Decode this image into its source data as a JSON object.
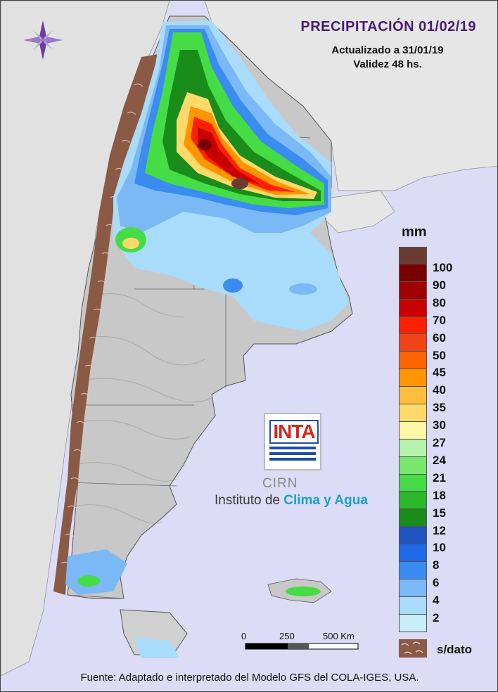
{
  "map": {
    "title": "PRECIPITACIÓN 01/02/19",
    "updated": "Actualizado a 31/01/19",
    "validity": "Validez 48 hs.",
    "legend": {
      "unit": "mm",
      "levels": [
        {
          "label": "100",
          "color": "#6b3a32"
        },
        {
          "label": "90",
          "color": "#7a0000"
        },
        {
          "label": "80",
          "color": "#a00000"
        },
        {
          "label": "70",
          "color": "#c80000"
        },
        {
          "label": "60",
          "color": "#ff2000"
        },
        {
          "label": "50",
          "color": "#f04418"
        },
        {
          "label": "45",
          "color": "#ff6400"
        },
        {
          "label": "40",
          "color": "#ff9600"
        },
        {
          "label": "35",
          "color": "#ffbe3c"
        },
        {
          "label": "30",
          "color": "#ffd96a"
        },
        {
          "label": "27",
          "color": "#fff6a8"
        },
        {
          "label": "24",
          "color": "#b7f3ad"
        },
        {
          "label": "21",
          "color": "#78e86a"
        },
        {
          "label": "18",
          "color": "#46dc46"
        },
        {
          "label": "15",
          "color": "#2cb82c"
        },
        {
          "label": "12",
          "color": "#1a8c1a"
        },
        {
          "label": "10",
          "color": "#1c55c0"
        },
        {
          "label": "8",
          "color": "#1e6ae8"
        },
        {
          "label": "6",
          "color": "#3a8cf0"
        },
        {
          "label": "4",
          "color": "#7ab8f6"
        },
        {
          "label": "2",
          "color": "#a8dcfa"
        },
        {
          "label": "",
          "color": "#c8eefa"
        }
      ],
      "no_data_label": "s/dato",
      "no_data_color": "#8b5a44"
    },
    "scale_bar": {
      "labels": [
        "0",
        "250",
        "500 Km"
      ]
    },
    "logo": {
      "inta": "INTA",
      "cirn": "CIRN",
      "institute_prefix": "Instituto de",
      "institute_highlight": "Clima y Agua"
    },
    "footer": "Fuente: Adaptado e interpretado del Modelo GFS del COLA-IGES, USA."
  }
}
